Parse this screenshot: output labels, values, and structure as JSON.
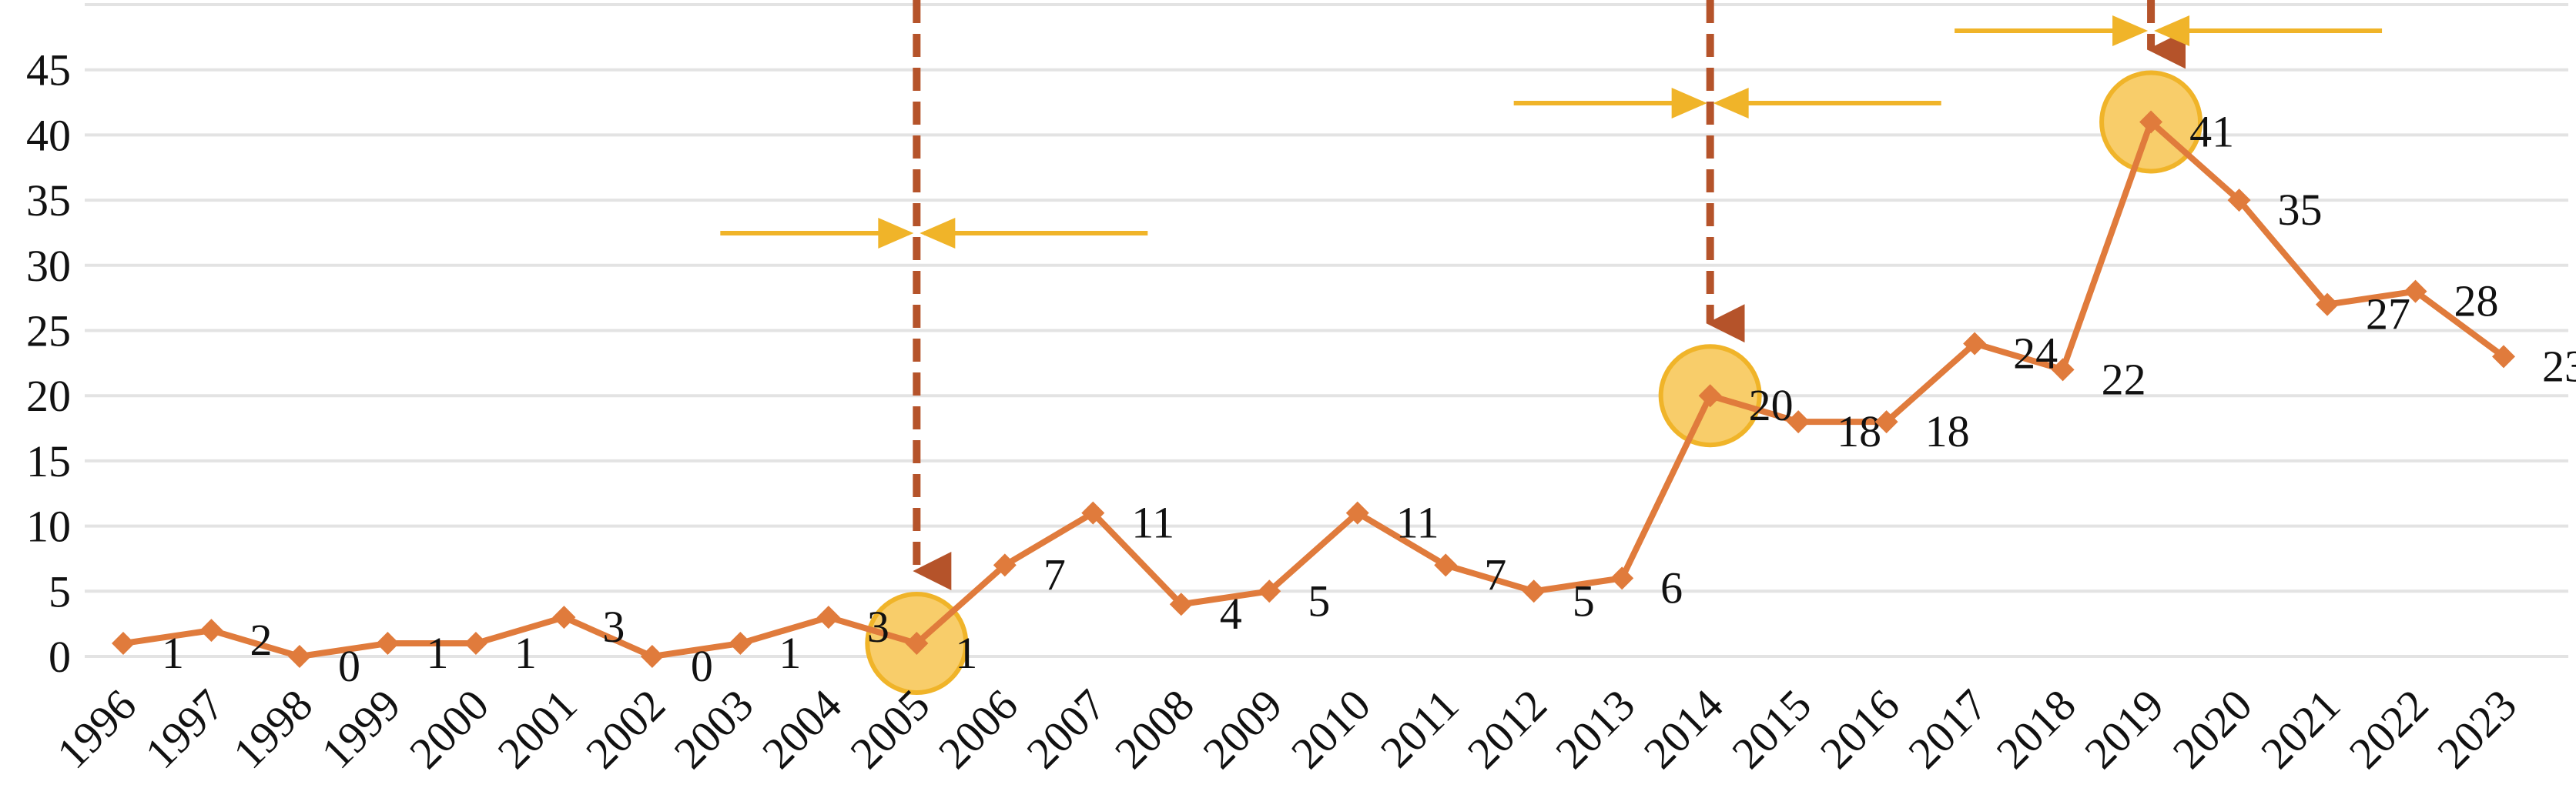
{
  "chart_data": {
    "type": "line",
    "categories": [
      "1996",
      "1997",
      "1998",
      "1999",
      "2000",
      "2001",
      "2002",
      "2003",
      "2004",
      "2005",
      "2006",
      "2007",
      "2008",
      "2009",
      "2010",
      "2011",
      "2012",
      "2013",
      "2014",
      "2015",
      "2016",
      "2017",
      "2018",
      "2019",
      "2020",
      "2021",
      "2022",
      "2023"
    ],
    "values": [
      1,
      2,
      0,
      1,
      1,
      3,
      0,
      1,
      3,
      1,
      7,
      11,
      4,
      5,
      11,
      7,
      5,
      6,
      20,
      18,
      18,
      24,
      22,
      41,
      35,
      27,
      28,
      23
    ],
    "color": "#e07b3c",
    "ylim": [
      0,
      50
    ],
    "yticks": [
      0,
      5,
      10,
      15,
      20,
      25,
      30,
      35,
      40,
      45
    ],
    "grid": true,
    "highlights": [
      "2005",
      "2014",
      "2019"
    ]
  }
}
